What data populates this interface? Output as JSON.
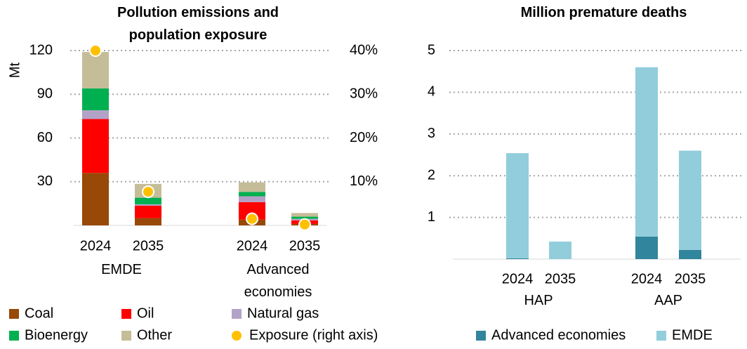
{
  "chart_data": [
    {
      "type": "bar",
      "stacked": true,
      "title": "Pollution emissions and population exposure",
      "y_label": "Mt",
      "categories": [
        "2024",
        "2035",
        "2024",
        "2035"
      ],
      "groups": [
        "EMDE",
        "Advanced economies"
      ],
      "series": [
        {
          "name": "Coal",
          "color": "#984807",
          "values": [
            36,
            5,
            4,
            1
          ]
        },
        {
          "name": "Oil",
          "color": "#ff0000",
          "values": [
            37,
            8.5,
            12,
            2.5
          ]
        },
        {
          "name": "Natural gas",
          "color": "#b3a2c7",
          "values": [
            6,
            1,
            4,
            1
          ]
        },
        {
          "name": "Bioenergy",
          "color": "#00b050",
          "values": [
            15,
            4.5,
            3,
            1.5
          ]
        },
        {
          "name": "Other",
          "color": "#c4bd97",
          "values": [
            25,
            9.5,
            6.5,
            2.5
          ]
        },
        {
          "name": "Exposure (right axis)",
          "type": "scatter",
          "axis": "y2",
          "color": "#ffc000",
          "values": [
            40,
            7.7,
            1.5,
            0.2
          ]
        }
      ],
      "ylim": [
        0,
        120
      ],
      "yticks": [
        30,
        60,
        90,
        120
      ],
      "y2lim": [
        0,
        40
      ],
      "y2ticks": [
        {
          "value": 10,
          "label": "10%"
        },
        {
          "value": 20,
          "label": "20%"
        },
        {
          "value": 30,
          "label": "30%"
        },
        {
          "value": 40,
          "label": "40%"
        }
      ],
      "grid": true
    },
    {
      "type": "bar",
      "stacked": true,
      "title": "Million premature deaths",
      "categories": [
        "2024",
        "2035",
        "2024",
        "2035"
      ],
      "groups": [
        "HAP",
        "AAP"
      ],
      "series": [
        {
          "name": "Advanced economies",
          "color": "#31859c",
          "values": [
            0.02,
            0,
            0.54,
            0.22
          ]
        },
        {
          "name": "EMDE",
          "color": "#92cddc",
          "values": [
            2.52,
            0.42,
            4.06,
            2.38
          ]
        }
      ],
      "ylim": [
        0,
        5
      ],
      "yticks": [
        1,
        2,
        3,
        4,
        5
      ],
      "grid": true
    }
  ]
}
